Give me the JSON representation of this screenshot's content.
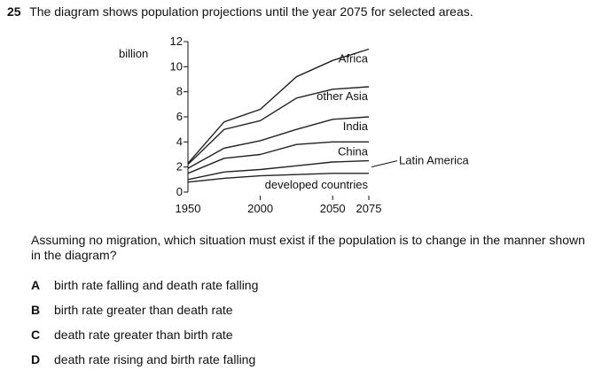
{
  "question": {
    "number": "25",
    "stem": "The diagram shows population projections until the year 2075 for selected areas.",
    "prompt": "Assuming no migration, which situation must exist if the population is to change in the manner shown in the diagram?",
    "options": [
      {
        "letter": "A",
        "text": "birth rate falling and death rate falling"
      },
      {
        "letter": "B",
        "text": "birth rate greater than death rate"
      },
      {
        "letter": "C",
        "text": "death rate greater than birth rate"
      },
      {
        "letter": "D",
        "text": "death rate rising and birth rate falling"
      }
    ]
  },
  "chart_data": {
    "type": "area",
    "title": "",
    "xlabel": "",
    "ylabel": "billion",
    "ylim": [
      0,
      12
    ],
    "xlim": [
      1950,
      2075
    ],
    "yticks": [
      "0",
      "2",
      "4",
      "6",
      "8",
      "10",
      "12"
    ],
    "xticks": [
      "1950",
      "2000",
      "2050",
      "2075"
    ],
    "line_color": "#222222",
    "note": "stacked cumulative totals",
    "x": [
      1950,
      1975,
      2000,
      2025,
      2050,
      2075
    ],
    "series": [
      {
        "name": "developed countries",
        "values": [
          0.8,
          1.1,
          1.3,
          1.4,
          1.5,
          1.5
        ]
      },
      {
        "name": "Latin America",
        "values": [
          1.0,
          1.6,
          1.8,
          2.1,
          2.4,
          2.5
        ]
      },
      {
        "name": "China",
        "values": [
          1.5,
          2.7,
          3.0,
          3.8,
          4.0,
          4.0
        ]
      },
      {
        "name": "India",
        "values": [
          1.9,
          3.5,
          4.1,
          5.0,
          5.8,
          6.0
        ]
      },
      {
        "name": "other Asia",
        "values": [
          2.2,
          5.0,
          5.7,
          7.5,
          8.2,
          8.4
        ]
      },
      {
        "name": "Africa",
        "values": [
          2.3,
          5.6,
          6.6,
          9.2,
          10.5,
          11.4
        ]
      }
    ]
  }
}
